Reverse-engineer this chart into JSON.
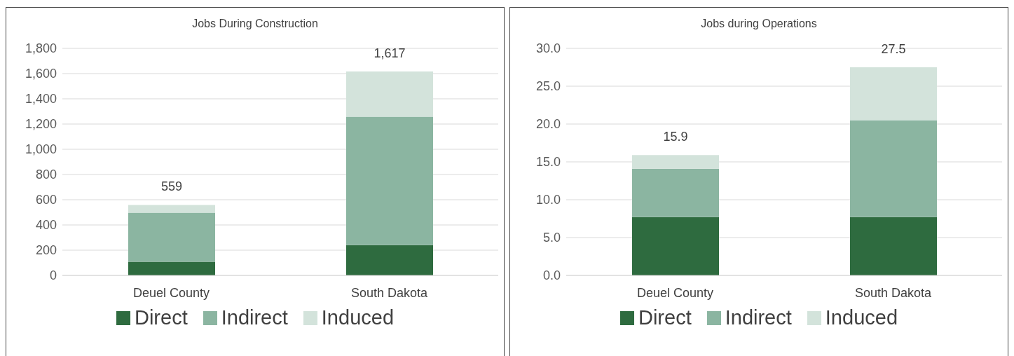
{
  "chart_data": [
    {
      "type": "bar",
      "stacked": true,
      "title": "Jobs During Construction",
      "categories": [
        "Deuel County",
        "South Dakota"
      ],
      "series": [
        {
          "name": "Direct",
          "color": "#2e6b3f",
          "values": [
            108,
            240
          ]
        },
        {
          "name": "Indirect",
          "color": "#8bb5a1",
          "values": [
            389,
            1018
          ]
        },
        {
          "name": "Induced",
          "color": "#d3e3db",
          "values": [
            62,
            359
          ]
        }
      ],
      "totals": [
        "559",
        "1,617"
      ],
      "ylim": [
        0,
        1800
      ],
      "yticks": [
        0,
        200,
        400,
        600,
        800,
        {
          "value": 1000,
          "label": "1,000"
        },
        {
          "value": 1200,
          "label": "1,200"
        },
        {
          "value": 1400,
          "label": "1,400"
        },
        {
          "value": 1600,
          "label": "1,600"
        },
        {
          "value": 1800,
          "label": "1,800"
        }
      ],
      "grid": "y",
      "legend": "bottom"
    },
    {
      "type": "bar",
      "stacked": true,
      "title": "Jobs during Operations",
      "categories": [
        "Deuel County",
        "South Dakota"
      ],
      "series": [
        {
          "name": "Direct",
          "color": "#2e6b3f",
          "values": [
            7.7,
            7.7
          ]
        },
        {
          "name": "Indirect",
          "color": "#8bb5a1",
          "values": [
            6.4,
            12.8
          ]
        },
        {
          "name": "Induced",
          "color": "#d3e3db",
          "values": [
            1.8,
            7.0
          ]
        }
      ],
      "totals": [
        "15.9",
        "27.5"
      ],
      "ylim": [
        0,
        30
      ],
      "yticks": [
        {
          "value": 0,
          "label": "0.0"
        },
        {
          "value": 5,
          "label": "5.0"
        },
        {
          "value": 10,
          "label": "10.0"
        },
        {
          "value": 15,
          "label": "15.0"
        },
        {
          "value": 20,
          "label": "20.0"
        },
        {
          "value": 25,
          "label": "25.0"
        },
        {
          "value": 30,
          "label": "30.0"
        }
      ],
      "grid": "y",
      "legend": "bottom"
    }
  ]
}
